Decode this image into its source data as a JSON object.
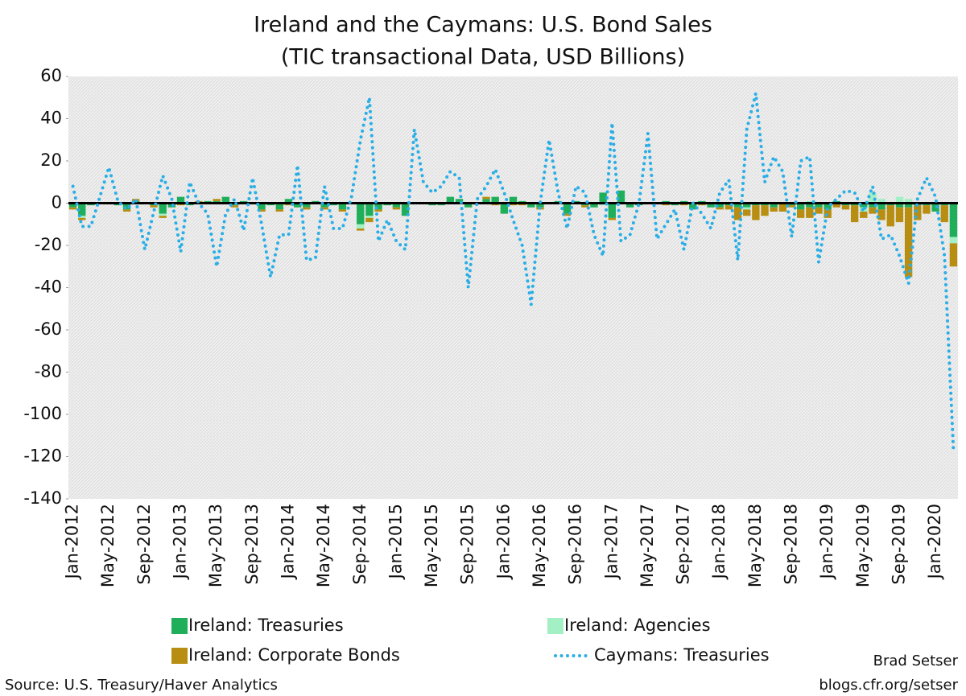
{
  "chart_data": {
    "type": "bar",
    "title": "Ireland and the Caymans: U.S. Bond Sales",
    "subtitle": "(TIC transactional Data, USD Billions)",
    "source": "Source: U.S. Treasury/Haver Analytics",
    "author": "Brad Setser",
    "website": "blogs.cfr.org/setser",
    "categories": [
      "Jan-2012",
      null,
      null,
      null,
      "May-2012",
      null,
      null,
      null,
      "Sep-2012",
      null,
      null,
      null,
      "Jan-2013",
      null,
      null,
      null,
      "May-2013",
      null,
      null,
      null,
      "Sep-2013",
      null,
      null,
      null,
      "Jan-2014",
      null,
      null,
      null,
      "May-2014",
      null,
      null,
      null,
      "Sep-2014",
      null,
      null,
      null,
      "Jan-2015",
      null,
      null,
      null,
      "May-2015",
      null,
      null,
      null,
      "Sep-2015",
      null,
      null,
      null,
      "Jan-2016",
      null,
      null,
      null,
      "May-2016",
      null,
      null,
      null,
      "Sep-2016",
      null,
      null,
      null,
      "Jan-2017",
      null,
      null,
      null,
      "May-2017",
      null,
      null,
      null,
      "Sep-2017",
      null,
      null,
      null,
      "Jan-2018",
      null,
      null,
      null,
      "May-2018",
      null,
      null,
      null,
      "Sep-2018",
      null,
      null,
      null,
      "Jan-2019",
      null,
      null,
      null,
      "May-2019",
      null,
      null,
      null,
      "Sep-2019",
      null,
      null,
      null,
      "Jan-2020",
      null,
      null
    ],
    "series": [
      {
        "name": "Ireland: Treasuries",
        "type": "bar",
        "color": "#1fae5a",
        "values": [
          -2,
          -6,
          -1,
          0,
          0,
          -1,
          -3,
          1,
          0,
          -1,
          -5,
          -2,
          3,
          -1,
          0,
          1,
          1,
          3,
          -1,
          1,
          0,
          -3,
          -1,
          -3,
          2,
          -2,
          -2,
          1,
          -2,
          -1,
          -3,
          0,
          -10,
          -6,
          -3,
          -1,
          -2,
          -6,
          0,
          0,
          -1,
          -1,
          3,
          2,
          -2,
          0,
          2,
          3,
          -5,
          3,
          1,
          -2,
          -2,
          0,
          1,
          -5,
          1,
          -1,
          -2,
          5,
          -7,
          6,
          -2,
          -1,
          0,
          0,
          1,
          -1,
          1,
          -3,
          1,
          -2,
          -2,
          -1,
          -2,
          -2,
          -1,
          -1,
          -2,
          0,
          -1,
          -3,
          -2,
          -2,
          -3,
          1,
          -1,
          -1,
          -2,
          -2,
          -3,
          -1,
          -2,
          -2,
          -1,
          -1,
          -4,
          -1,
          -16
        ]
      },
      {
        "name": "Ireland: Agencies",
        "type": "bar",
        "color": "#a2f0c4",
        "values": [
          0,
          -1,
          0,
          0,
          0,
          0,
          0,
          0,
          0,
          0,
          -1,
          0,
          0,
          0,
          0,
          0,
          0,
          0,
          0,
          0,
          0,
          0,
          0,
          0,
          0,
          0,
          0,
          0,
          0,
          0,
          0,
          0,
          -2,
          -1,
          0,
          0,
          0,
          0,
          0,
          0,
          0,
          0,
          0,
          0,
          0,
          0,
          0,
          0,
          0,
          0,
          0,
          0,
          0,
          0,
          0,
          0,
          0,
          0,
          0,
          -1,
          0,
          0,
          0,
          0,
          0,
          0,
          0,
          0,
          0,
          0,
          0,
          0,
          0,
          0,
          0,
          -1,
          0,
          0,
          0,
          0,
          0,
          0,
          1,
          0,
          0,
          0,
          0,
          0,
          -2,
          5,
          2,
          0,
          3,
          2,
          0,
          0,
          0,
          0,
          -3
        ]
      },
      {
        "name": "Ireland: Corporate Bonds",
        "type": "bar",
        "color": "#b88e12",
        "values": [
          -1,
          -1,
          0,
          0,
          0,
          0,
          -1,
          1,
          0,
          -1,
          -1,
          0,
          -1,
          0,
          1,
          0,
          1,
          0,
          -1,
          0,
          0,
          -1,
          0,
          -1,
          -1,
          0,
          -1,
          0,
          -1,
          0,
          -1,
          0,
          -1,
          -2,
          -1,
          0,
          -1,
          0,
          0,
          0,
          0,
          0,
          0,
          0,
          0,
          0,
          1,
          -1,
          0,
          -1,
          -1,
          0,
          -1,
          0,
          0,
          -1,
          0,
          -1,
          0,
          0,
          -1,
          0,
          0,
          0,
          0,
          0,
          -1,
          0,
          -1,
          0,
          -1,
          0,
          -1,
          -2,
          -6,
          -3,
          -7,
          -5,
          -2,
          -4,
          -1,
          -4,
          -5,
          -3,
          -4,
          -2,
          -2,
          -8,
          -3,
          -3,
          -5,
          -10,
          -7,
          -33,
          -7,
          -4,
          0,
          -8,
          -11
        ]
      },
      {
        "name": "Caymans: Treasuries",
        "type": "line",
        "color": "#2aaee6",
        "values": [
          8,
          -11,
          -11,
          3,
          17,
          1,
          -3,
          2,
          -22,
          -4,
          13,
          2,
          -23,
          10,
          0,
          -5,
          -30,
          -5,
          2,
          -13,
          12,
          -10,
          -35,
          -15,
          -15,
          18,
          -27,
          -26,
          8,
          -12,
          -12,
          3,
          30,
          50,
          -18,
          -8,
          -18,
          -22,
          35,
          10,
          5,
          8,
          15,
          12,
          -40,
          2,
          8,
          16,
          5,
          -8,
          -20,
          -48,
          0,
          30,
          5,
          -12,
          8,
          5,
          -15,
          -25,
          38,
          -18,
          -15,
          0,
          33,
          -17,
          -10,
          -3,
          -22,
          0,
          -5,
          -12,
          5,
          11,
          -27,
          35,
          52,
          10,
          22,
          15,
          -16,
          20,
          22,
          -28,
          -2,
          2,
          6,
          5,
          -4,
          8,
          -17,
          -15,
          -25,
          -38,
          2,
          12,
          3,
          -25,
          -117
        ]
      }
    ],
    "ylim": [
      -140,
      60
    ],
    "yticks": [
      -140,
      -120,
      -100,
      -80,
      -60,
      -40,
      -20,
      0,
      20,
      40,
      60
    ]
  }
}
